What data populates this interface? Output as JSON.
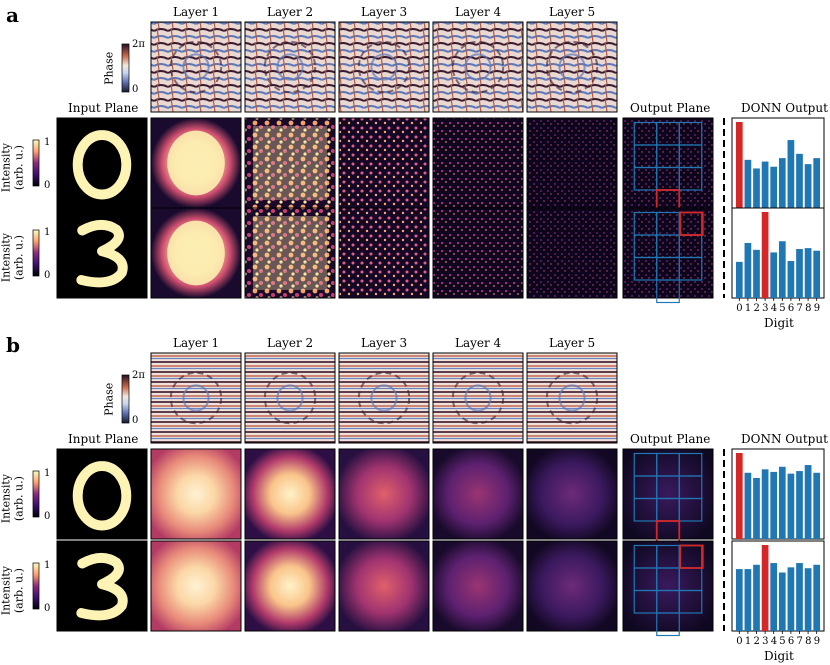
{
  "panels": [
    {
      "label": "a",
      "layer_titles": [
        "Layer 1",
        "Layer 2",
        "Layer 3",
        "Layer 4",
        "Layer 5"
      ],
      "phase_label": "Phase",
      "phase_ticks": [
        "2π",
        "0"
      ],
      "input_title": "Input Plane",
      "output_title": "Output Plane",
      "donn_title": "DONN Output",
      "intensity_label": "Intensity",
      "intensity_unit": "(arb. u.)",
      "intensity_ticks": [
        "1",
        "0"
      ],
      "rows": [
        {
          "digit_shown": "0",
          "highlight_cell": "bottom-center"
        },
        {
          "digit_shown": "3",
          "highlight_cell": "top-right"
        }
      ]
    },
    {
      "label": "b",
      "layer_titles": [
        "Layer 1",
        "Layer 2",
        "Layer 3",
        "Layer 4",
        "Layer 5"
      ],
      "phase_label": "Phase",
      "phase_ticks": [
        "2π",
        "0"
      ],
      "input_title": "Input Plane",
      "output_title": "Output Plane",
      "donn_title": "DONN Output",
      "intensity_label": "Intensity",
      "intensity_unit": "(arb. u.)",
      "intensity_ticks": [
        "1",
        "0"
      ],
      "rows": [
        {
          "digit_shown": "0",
          "highlight_cell": "bottom-center"
        },
        {
          "digit_shown": "3",
          "highlight_cell": "top-right"
        }
      ]
    }
  ],
  "digit_axis": {
    "xlabel": "Digit",
    "tick_labels": [
      "0",
      "1",
      "2",
      "3",
      "4",
      "5",
      "6",
      "7",
      "8",
      "9"
    ]
  },
  "colors": {
    "bar": "#1f77b4",
    "highlight_bar": "#d62728",
    "detector_grid": "#1f77b4",
    "detector_highlight": "#d62728"
  },
  "chart_data": [
    {
      "type": "bar",
      "panel": "a",
      "row": 1,
      "categories": [
        "0",
        "1",
        "2",
        "3",
        "4",
        "5",
        "6",
        "7",
        "8",
        "9"
      ],
      "values": [
        1.0,
        0.56,
        0.46,
        0.54,
        0.48,
        0.58,
        0.79,
        0.63,
        0.51,
        0.58
      ],
      "highlight_index": 0,
      "xlabel": "Digit"
    },
    {
      "type": "bar",
      "panel": "a",
      "row": 2,
      "categories": [
        "0",
        "1",
        "2",
        "3",
        "4",
        "5",
        "6",
        "7",
        "8",
        "9"
      ],
      "values": [
        0.42,
        0.64,
        0.56,
        1.0,
        0.53,
        0.66,
        0.43,
        0.57,
        0.58,
        0.55
      ],
      "highlight_index": 3,
      "xlabel": "Digit"
    },
    {
      "type": "bar",
      "panel": "b",
      "row": 1,
      "categories": [
        "0",
        "1",
        "2",
        "3",
        "4",
        "5",
        "6",
        "7",
        "8",
        "9"
      ],
      "values": [
        1.0,
        0.77,
        0.71,
        0.81,
        0.78,
        0.84,
        0.76,
        0.79,
        0.86,
        0.77
      ],
      "highlight_index": 0,
      "xlabel": "Digit"
    },
    {
      "type": "bar",
      "panel": "b",
      "row": 2,
      "categories": [
        "0",
        "1",
        "2",
        "3",
        "4",
        "5",
        "6",
        "7",
        "8",
        "9"
      ],
      "values": [
        0.72,
        0.72,
        0.77,
        1.0,
        0.79,
        0.68,
        0.74,
        0.79,
        0.73,
        0.77
      ],
      "highlight_index": 3,
      "xlabel": "Digit"
    }
  ]
}
